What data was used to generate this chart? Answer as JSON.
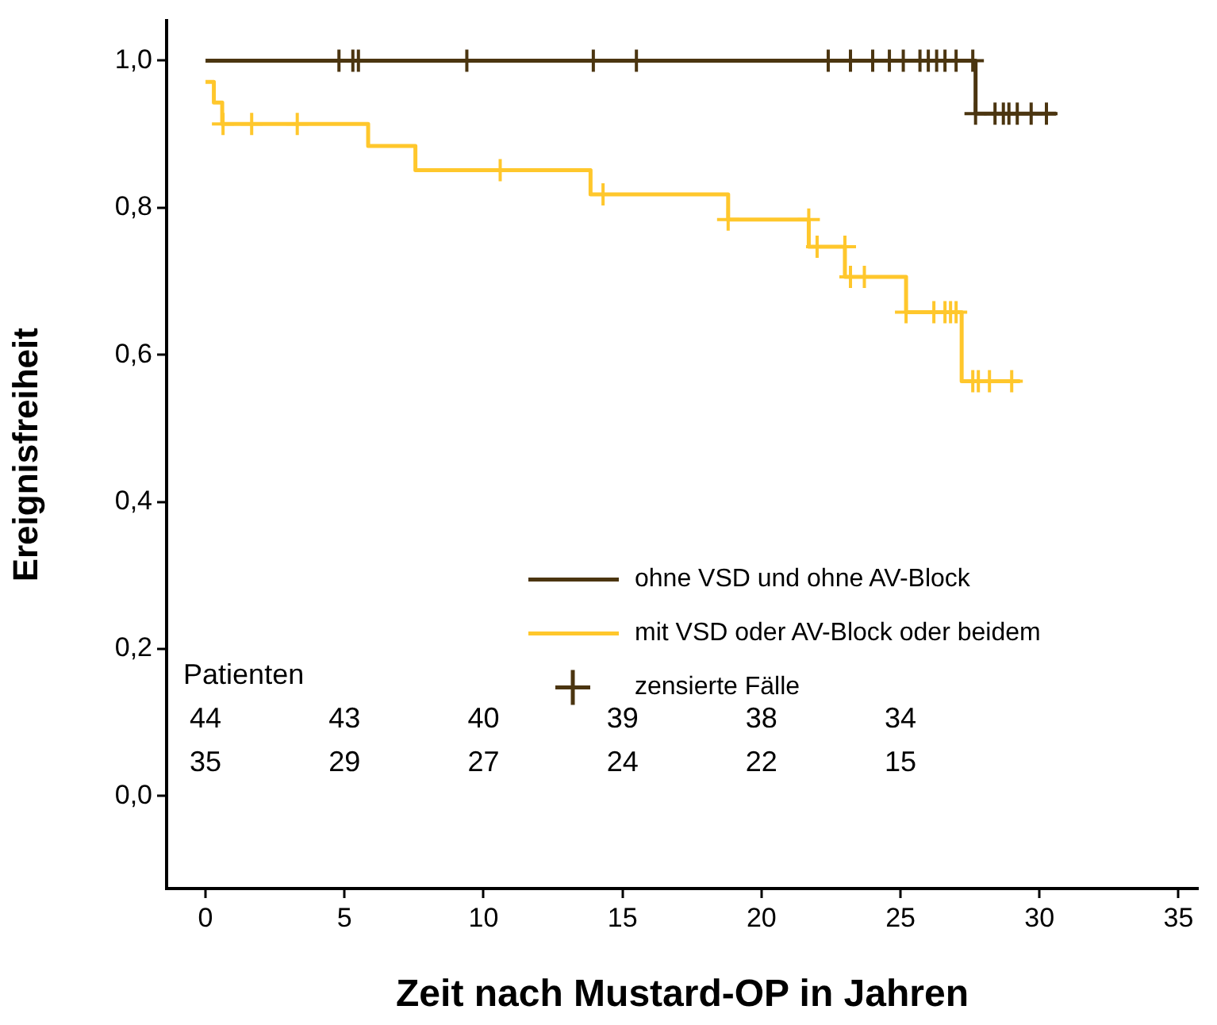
{
  "chart_data": {
    "type": "step",
    "xlabel": "Zeit nach Mustard-OP in Jahren",
    "ylabel": "Ereignisfreiheit",
    "xlim": [
      -1.4,
      35.7
    ],
    "xticks": [
      0,
      5,
      10,
      15,
      20,
      25,
      30,
      35
    ],
    "ylim": [
      -0.126,
      1.054
    ],
    "yticks": [
      {
        "value": 0,
        "label": "0,0"
      },
      {
        "value": 0.2,
        "label": "0,2"
      },
      {
        "value": 0.4,
        "label": "0,4"
      },
      {
        "value": 0.6,
        "label": "0,6"
      },
      {
        "value": 0.8,
        "label": "0,8"
      },
      {
        "value": 1,
        "label": "1,0"
      }
    ],
    "legend": "right",
    "marker": "none",
    "line_style": "solid",
    "series": [
      {
        "name": "ohne VSD und ohne AV-Block",
        "color": "#4b3510",
        "x": [
          0,
          27.7,
          30.6
        ],
        "values": [
          1.0,
          0.928,
          0.928
        ]
      },
      {
        "name": "mit VSD oder AV-Block oder beidem",
        "color": "#ffc72c",
        "x": [
          0,
          0.3,
          0.6,
          5.85,
          7.55,
          13.85,
          18.8,
          21.7,
          23.0,
          25.2,
          27.2,
          29.3
        ],
        "values": [
          0.971,
          0.943,
          0.914,
          0.884,
          0.851,
          0.818,
          0.784,
          0.747,
          0.706,
          0.658,
          0.564,
          0.564
        ]
      },
      {
        "name": "zensierte Fälle",
        "type": "scatter",
        "marker": "cross",
        "color": "#4b3510",
        "x": [
          4.8,
          5.3,
          5.5,
          9.4,
          13.95,
          15.5,
          22.4,
          23.2,
          24.0,
          24.6,
          25.1,
          25.7,
          26.0,
          26.3,
          26.6,
          27.0,
          27.6,
          27.7,
          28.4,
          28.7,
          28.9,
          29.2,
          29.7,
          30.25
        ],
        "values": [
          1,
          1,
          1,
          1,
          1,
          1,
          1,
          1,
          1,
          1,
          1,
          1,
          1,
          1,
          1,
          1,
          1,
          0.928,
          0.928,
          0.928,
          0.928,
          0.928,
          0.928,
          0.928
        ]
      },
      {
        "type": "scatter",
        "marker": "cross",
        "color": "#ffc72c",
        "x": [
          0.63,
          1.66,
          3.3,
          10.6,
          14.3,
          18.8,
          21.7,
          22.0,
          23.0,
          23.2,
          23.7,
          25.2,
          26.2,
          26.6,
          26.8,
          27.0,
          27.6,
          27.8,
          28.2,
          29.0
        ],
        "values": [
          0.914,
          0.914,
          0.914,
          0.851,
          0.818,
          0.784,
          0.784,
          0.747,
          0.747,
          0.706,
          0.706,
          0.658,
          0.658,
          0.658,
          0.658,
          0.658,
          0.564,
          0.564,
          0.564,
          0.564
        ]
      }
    ],
    "annotations": [
      "Patienten",
      "44 43 40 39 38 34",
      "35 29 27 24 22 15"
    ]
  }
}
